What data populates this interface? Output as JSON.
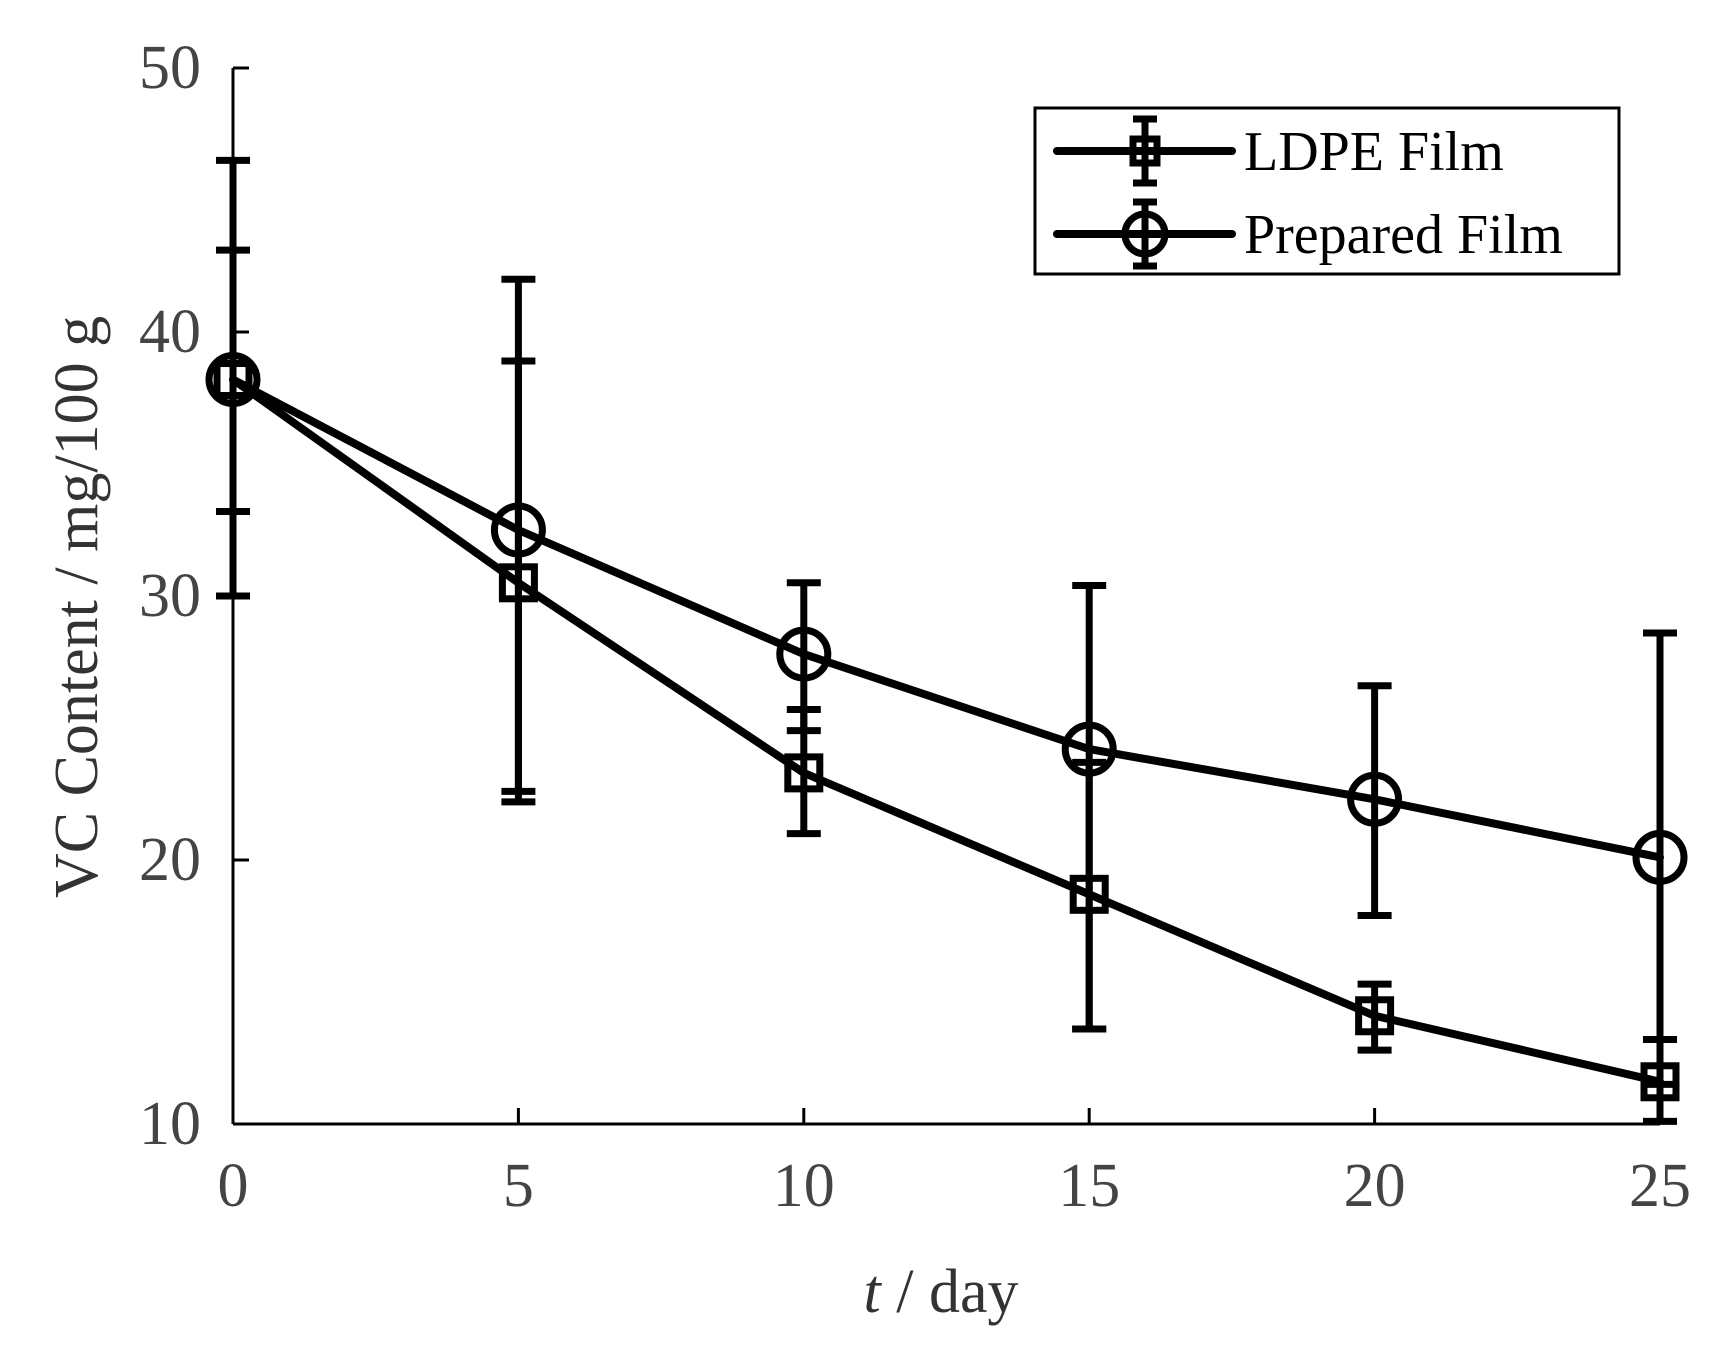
{
  "chart_data": {
    "type": "line",
    "title": "",
    "xlabel_italic": "t",
    "xlabel_rest": " / day",
    "ylabel": "VC Content / mg/100 g",
    "xlim": [
      0,
      25
    ],
    "ylim": [
      10,
      50
    ],
    "x_ticks": [
      0,
      5,
      10,
      15,
      20,
      25
    ],
    "y_ticks": [
      10,
      20,
      30,
      40,
      50
    ],
    "grid": false,
    "legend_position": "top-right",
    "series": [
      {
        "name": "LDPE Film",
        "marker": "square",
        "x": [
          0,
          5,
          10,
          15,
          20,
          25
        ],
        "y": [
          38.2,
          30.5,
          23.3,
          18.7,
          14.1,
          11.6
        ],
        "err_low": [
          33.2,
          22.2,
          21.0,
          13.6,
          12.8,
          10.1
        ],
        "err_high": [
          43.1,
          38.9,
          25.7,
          23.7,
          15.3,
          13.2
        ]
      },
      {
        "name": "Prepared Film",
        "marker": "circle",
        "x": [
          0,
          5,
          10,
          15,
          20,
          25
        ],
        "y": [
          38.2,
          32.5,
          27.8,
          24.2,
          22.3,
          20.1
        ],
        "err_low": [
          30.0,
          22.6,
          24.9,
          13.6,
          17.9,
          11.5
        ],
        "err_high": [
          46.5,
          42.0,
          30.5,
          30.4,
          26.6,
          28.6
        ]
      }
    ]
  }
}
